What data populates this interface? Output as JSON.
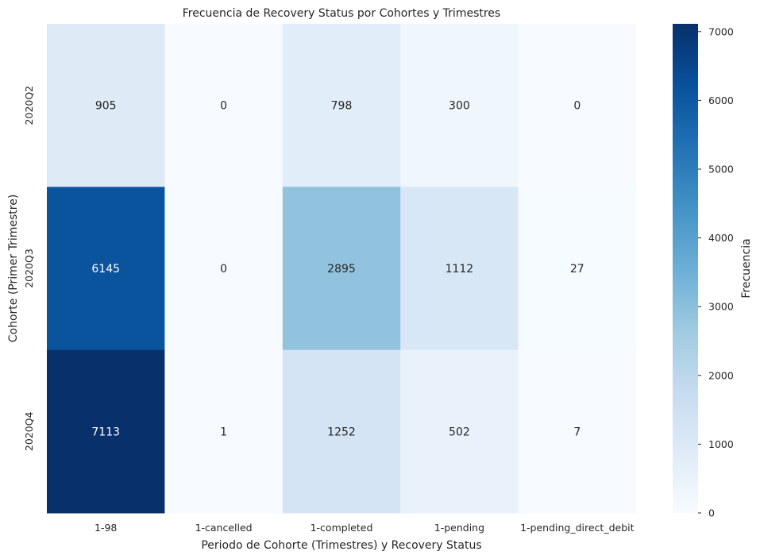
{
  "chart_data": {
    "type": "heatmap",
    "title": "Frecuencia de Recovery Status por Cohortes y Trimestres",
    "xlabel": "Periodo de Cohorte (Trimestres) y Recovery Status",
    "ylabel": "Cohorte (Primer Trimestre)",
    "x_categories": [
      "1-98",
      "1-cancelled",
      "1-completed",
      "1-pending",
      "1-pending_direct_debit"
    ],
    "y_categories": [
      "2020Q2",
      "2020Q3",
      "2020Q4"
    ],
    "values": [
      [
        905,
        0,
        798,
        300,
        0
      ],
      [
        6145,
        0,
        2895,
        1112,
        27
      ],
      [
        7113,
        1,
        1252,
        502,
        7
      ]
    ],
    "colorbar": {
      "label": "Frecuencia",
      "range": [
        0,
        7113
      ],
      "ticks": [
        0,
        1000,
        2000,
        3000,
        4000,
        5000,
        6000,
        7000
      ],
      "colormap": "Blues"
    }
  }
}
